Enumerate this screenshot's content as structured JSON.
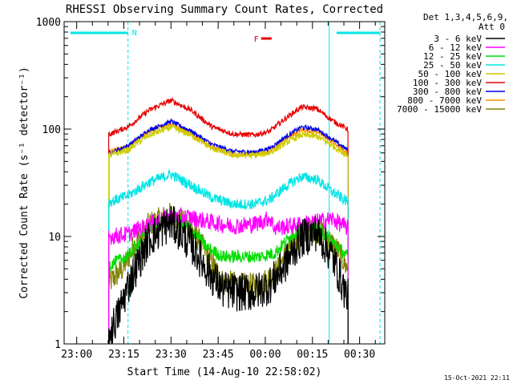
{
  "chart_data": {
    "type": "line",
    "title": "RHESSI Observing Summary Count Rates, Corrected",
    "ylabel": "Corrected Count Rate (s⁻¹ detector⁻¹)",
    "xlabel": "Start Time (14-Aug-10 22:58:02)",
    "yscale": "log",
    "ylim": [
      1,
      1000
    ],
    "xlim": [
      "22:58:02",
      "23:38:00"
    ],
    "grid": false,
    "legend_position": "right",
    "x_tick_labels": [
      "23:00",
      "23:15",
      "23:30",
      "23:45",
      "00:00",
      "00:15",
      "00:30"
    ],
    "x_ticks": [
      120,
      1020,
      1920,
      2820,
      3720,
      4620,
      5520
    ],
    "y_tick_labels": [
      "1",
      "10",
      "100",
      "1000"
    ],
    "y_ticks": [
      1,
      10,
      100,
      1000
    ],
    "detectors": "Det 1,3,4,5,6,9,",
    "attenuator": "Att 0",
    "timestamp": "15-Oct-2021 22:11",
    "flags": [
      {
        "label": "N",
        "color": "#00e5e5",
        "segments": [
          [
            0,
            1100
          ],
          [
            5080,
            5910
          ]
        ]
      },
      {
        "label": "F",
        "color": "#e60000",
        "segments": [
          [
            3640,
            3840
          ]
        ]
      }
    ],
    "dashed_times": [
      1100,
      5910
    ],
    "solid_times": [
      -120,
      4940
    ],
    "data_span": [
      730,
      5300
    ],
    "series": [
      {
        "name": "3 - 6 keV",
        "color": "#000000",
        "x": [
          760,
          900,
          1100,
          1500,
          1920,
          2300,
          2600,
          2900,
          3200,
          3500,
          3800,
          4100,
          4400,
          4700,
          5000,
          5200,
          5290
        ],
        "values": [
          1.3,
          1.8,
          3.5,
          9.5,
          13.5,
          8.5,
          5.0,
          3.2,
          3.0,
          3.0,
          3.5,
          5.5,
          9.5,
          11.0,
          6.5,
          3.5,
          2.7
        ]
      },
      {
        "name": "6 - 12 keV",
        "color": "#ff00ff",
        "x": [
          760,
          1100,
          1500,
          1920,
          2300,
          2700,
          3100,
          3500,
          3700,
          3800,
          3900,
          4200,
          4600,
          5000,
          5290
        ],
        "values": [
          10.0,
          10.5,
          13.0,
          15.5,
          15.0,
          13.5,
          12.5,
          13.0,
          14.0,
          15.0,
          12.0,
          12.5,
          13.5,
          14.5,
          12.0
        ]
      },
      {
        "name": "12 - 25 keV",
        "color": "#00dd00",
        "x": [
          760,
          1100,
          1500,
          1920,
          2300,
          2600,
          2900,
          3300,
          3600,
          3900,
          4200,
          4500,
          4700,
          5000,
          5290
        ],
        "values": [
          5.5,
          6.5,
          12.0,
          16.0,
          12.0,
          8.0,
          6.5,
          6.5,
          6.5,
          7.0,
          10.0,
          13.0,
          12.0,
          9.0,
          6.5
        ]
      },
      {
        "name": "25 - 50 keV",
        "color": "#00e5e5",
        "x": [
          760,
          1100,
          1500,
          1920,
          2300,
          2700,
          3100,
          3500,
          3800,
          4100,
          4400,
          4700,
          5000,
          5290
        ],
        "values": [
          21.0,
          24.0,
          32.0,
          38.0,
          30.0,
          23.0,
          20.0,
          20.0,
          22.0,
          29.0,
          36.0,
          34.0,
          26.0,
          21.0
        ]
      },
      {
        "name": "50 - 100 keV",
        "color": "#cccc00",
        "x": [
          760,
          1100,
          1500,
          1920,
          2300,
          2700,
          3100,
          3500,
          3800,
          4100,
          4400,
          4700,
          5000,
          5290
        ],
        "values": [
          57.0,
          64.0,
          88.0,
          104.0,
          88.0,
          66.0,
          57.0,
          57.0,
          60.0,
          74.0,
          88.0,
          86.0,
          70.0,
          57.0
        ]
      },
      {
        "name": "100 - 300 keV",
        "color": "#e60000",
        "x": [
          760,
          1100,
          1500,
          1920,
          2300,
          2700,
          3100,
          3500,
          3800,
          4100,
          4400,
          4700,
          5000,
          5290
        ],
        "values": [
          90.0,
          105.0,
          150.0,
          185.0,
          150.0,
          105.0,
          90.0,
          88.0,
          95.0,
          125.0,
          160.0,
          155.0,
          120.0,
          100.0
        ]
      },
      {
        "name": "300 - 800 keV",
        "color": "#0000e6",
        "x": [
          760,
          1100,
          1500,
          1920,
          2300,
          2700,
          3100,
          3500,
          3800,
          4100,
          4400,
          4700,
          5000,
          5290
        ],
        "values": [
          60.0,
          70.0,
          98.0,
          118.0,
          96.0,
          72.0,
          62.0,
          61.0,
          66.0,
          84.0,
          104.0,
          100.0,
          80.0,
          64.0
        ]
      },
      {
        "name": "800 - 7000 keV",
        "color": "#ff8c00",
        "x": [
          760,
          1100,
          1500,
          1920,
          2300,
          2700,
          3100,
          3500,
          3800,
          4100,
          4400,
          4700,
          5000,
          5290
        ],
        "values": [
          62.0,
          68.0,
          95.0,
          112.0,
          92.0,
          68.0,
          58.0,
          58.0,
          62.0,
          80.0,
          98.0,
          95.0,
          76.0,
          60.0
        ]
      },
      {
        "name": "7000 - 15000 keV",
        "color": "#808000",
        "x": [
          760,
          1000,
          1200,
          1500,
          1920,
          2300,
          2600,
          2900,
          3300,
          3600,
          3900,
          4200,
          4500,
          4800,
          5100,
          5290
        ],
        "values": [
          3.8,
          5.0,
          8.0,
          13.0,
          16.0,
          12.0,
          7.0,
          3.8,
          3.5,
          3.5,
          4.5,
          8.0,
          12.0,
          11.0,
          7.5,
          5.0
        ]
      }
    ]
  }
}
